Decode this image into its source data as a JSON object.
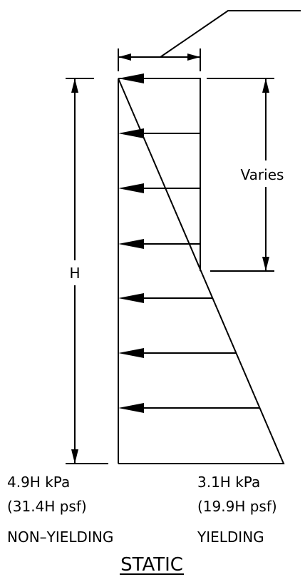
{
  "dimensions": {
    "height": "H",
    "varies": "Varies"
  },
  "non_yielding": {
    "pressure_si": "4.9H kPa",
    "pressure_us": "(31.4H psf)",
    "label": "NON–YIELDING"
  },
  "yielding": {
    "pressure_si": "3.1H kPa",
    "pressure_us": "(19.9H psf)",
    "label": "YIELDING"
  },
  "title": "STATIC"
}
